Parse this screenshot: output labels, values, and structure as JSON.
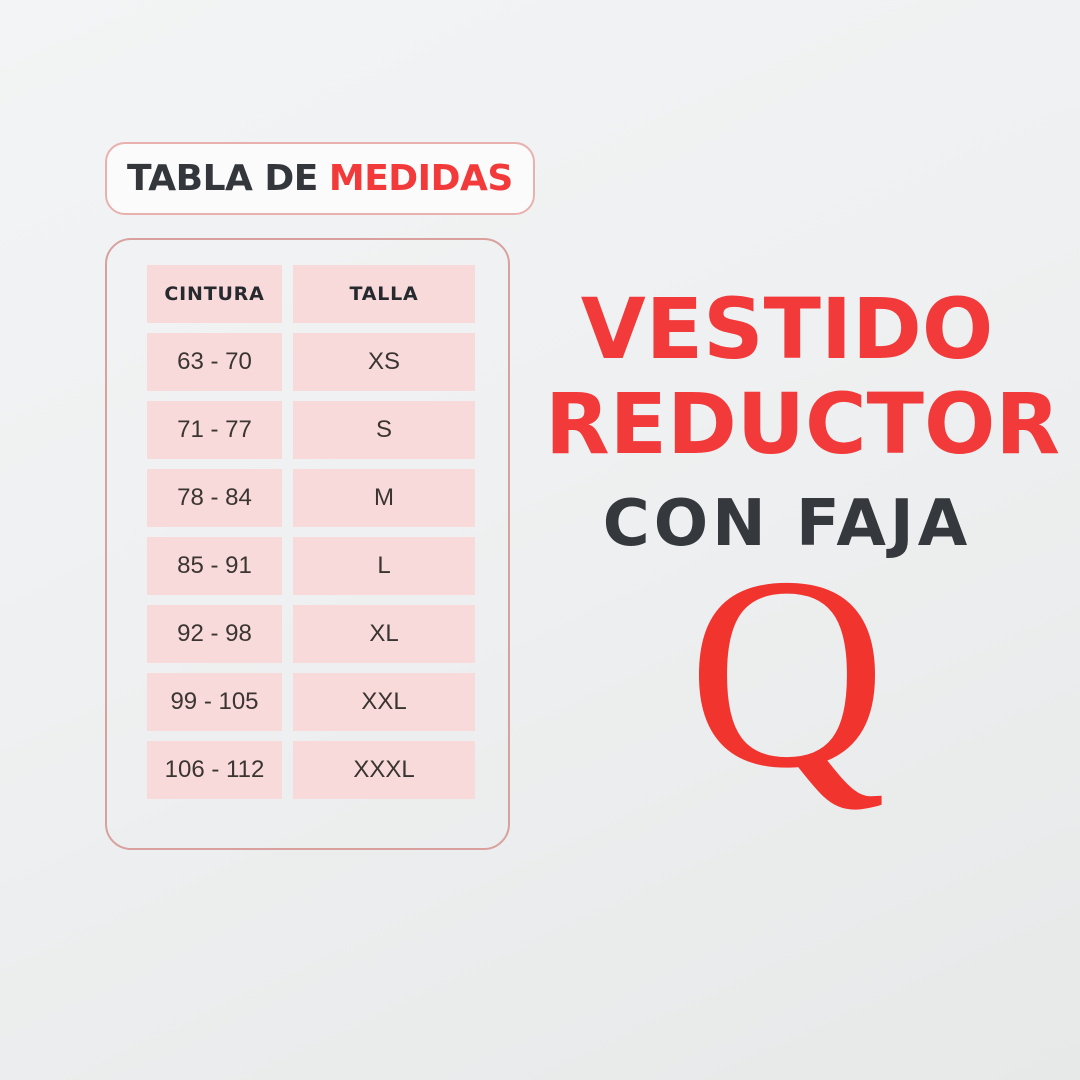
{
  "badge": {
    "title_dark": "TABLA DE",
    "title_red": "MEDIDAS"
  },
  "table": {
    "headers": {
      "col1": "CINTURA",
      "col2": "TALLA"
    },
    "rows": [
      {
        "cintura": "63 - 70",
        "talla": "XS"
      },
      {
        "cintura": "71 - 77",
        "talla": "S"
      },
      {
        "cintura": "78 - 84",
        "talla": "M"
      },
      {
        "cintura": "85 - 91",
        "talla": "L"
      },
      {
        "cintura": "92 - 98",
        "talla": "XL"
      },
      {
        "cintura": "99 - 105",
        "talla": "XXL"
      },
      {
        "cintura": "106 - 112",
        "talla": "XXXL"
      }
    ]
  },
  "headline": {
    "line1": "VESTIDO",
    "line2": "REDUCTOR",
    "subtitle": "CON FAJA"
  },
  "logo": {
    "letter": "Q"
  },
  "colors": {
    "accent_red": "#f23a3a",
    "dark_text": "#33363b",
    "cell_pink": "#f8dadb",
    "badge_border": "#e8b1ae",
    "panel_border": "#d8a19e",
    "background": "#eef0f1"
  },
  "chart_data": {
    "type": "table",
    "title": "TABLA DE MEDIDAS",
    "columns": [
      "CINTURA",
      "TALLA"
    ],
    "rows": [
      [
        "63 - 70",
        "XS"
      ],
      [
        "71 - 77",
        "S"
      ],
      [
        "78 - 84",
        "M"
      ],
      [
        "85 - 91",
        "L"
      ],
      [
        "92 - 98",
        "XL"
      ],
      [
        "99 - 105",
        "XXL"
      ],
      [
        "106 - 112",
        "XXXL"
      ]
    ]
  }
}
